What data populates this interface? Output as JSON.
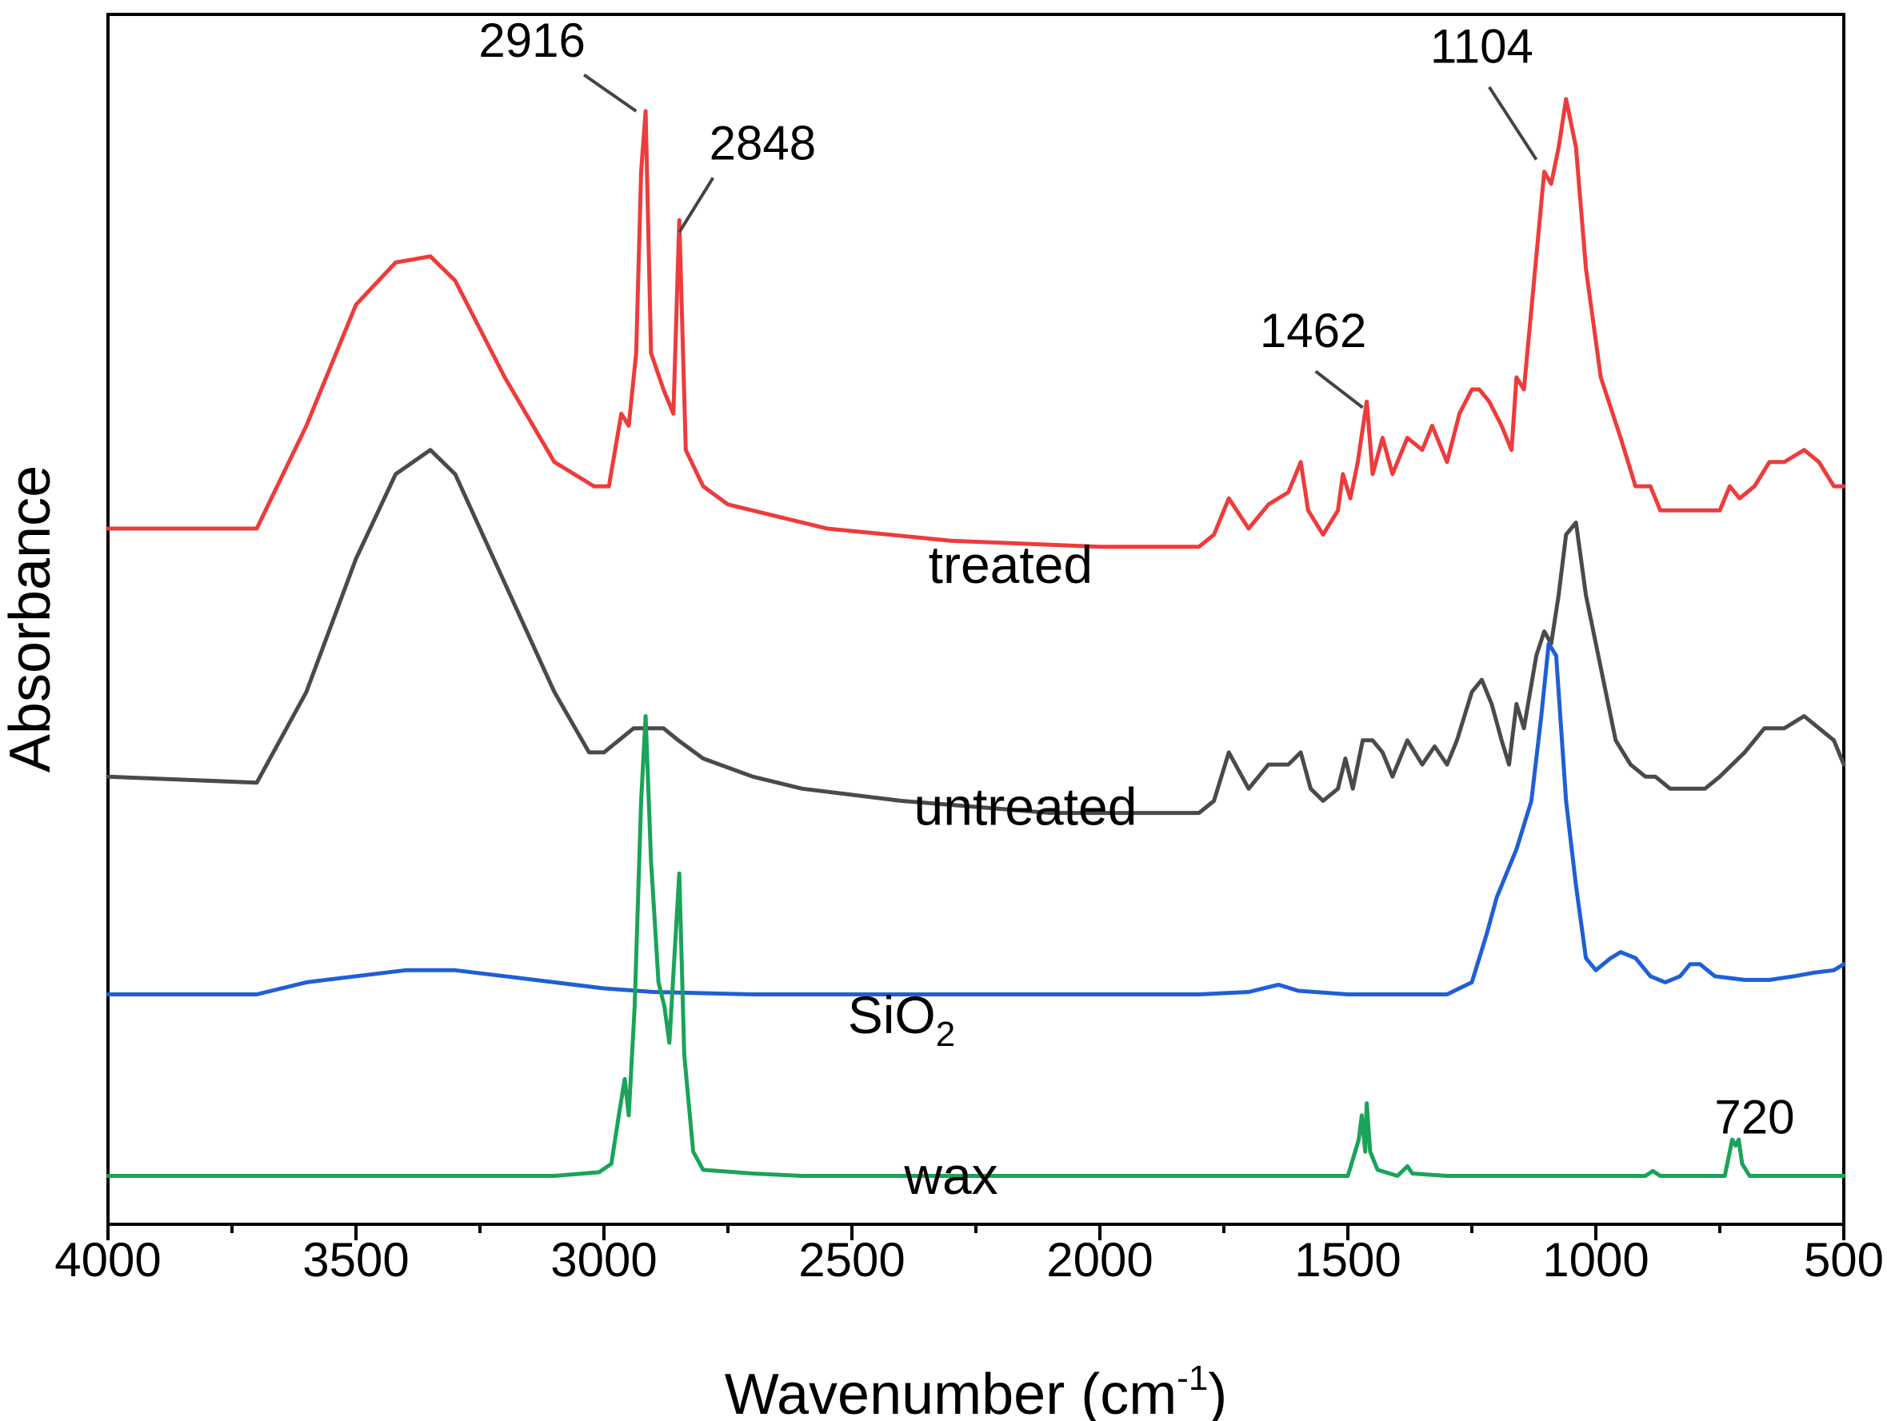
{
  "chart_data": {
    "type": "line",
    "title": "",
    "xlabel": "Wavenumber",
    "xlabel_unit_prefix": "(cm",
    "xlabel_unit_exponent": "-1",
    "xlabel_unit_suffix": ")",
    "ylabel": "Absorbance",
    "xlim": [
      4000,
      500
    ],
    "ylim": [
      0,
      100
    ],
    "x_reversed": true,
    "y_ticks_shown": false,
    "grid": false,
    "legend": "none",
    "x_ticks": [
      4000,
      3500,
      3000,
      2500,
      2000,
      1500,
      1000,
      500
    ],
    "x_tick_labels": [
      "4000",
      "3500",
      "3000",
      "2500",
      "2000",
      "1500",
      "1000",
      "500"
    ],
    "x_minor_step": 250,
    "series": [
      {
        "name": "treated",
        "color": "#ee3b3b",
        "points": [
          [
            4000,
            57.5
          ],
          [
            3700,
            57.5
          ],
          [
            3600,
            66
          ],
          [
            3500,
            76
          ],
          [
            3420,
            79.5
          ],
          [
            3350,
            80
          ],
          [
            3300,
            78
          ],
          [
            3200,
            70
          ],
          [
            3100,
            63
          ],
          [
            3020,
            61
          ],
          [
            2990,
            61
          ],
          [
            2965,
            67
          ],
          [
            2950,
            66
          ],
          [
            2935,
            72
          ],
          [
            2925,
            87
          ],
          [
            2916,
            92
          ],
          [
            2905,
            72
          ],
          [
            2880,
            69
          ],
          [
            2860,
            67
          ],
          [
            2848,
            83
          ],
          [
            2835,
            64
          ],
          [
            2800,
            61
          ],
          [
            2750,
            59.5
          ],
          [
            2650,
            58.5
          ],
          [
            2550,
            57.5
          ],
          [
            2300,
            56.5
          ],
          [
            2000,
            56
          ],
          [
            1800,
            56
          ],
          [
            1770,
            57
          ],
          [
            1740,
            60
          ],
          [
            1700,
            57.5
          ],
          [
            1660,
            59.5
          ],
          [
            1620,
            60.5
          ],
          [
            1595,
            63
          ],
          [
            1580,
            59
          ],
          [
            1550,
            57
          ],
          [
            1520,
            59
          ],
          [
            1510,
            62
          ],
          [
            1495,
            60
          ],
          [
            1480,
            63
          ],
          [
            1462,
            68
          ],
          [
            1450,
            62
          ],
          [
            1430,
            65
          ],
          [
            1410,
            62
          ],
          [
            1380,
            65
          ],
          [
            1350,
            64
          ],
          [
            1330,
            66
          ],
          [
            1300,
            63
          ],
          [
            1275,
            67
          ],
          [
            1250,
            69
          ],
          [
            1235,
            69
          ],
          [
            1215,
            68
          ],
          [
            1190,
            66
          ],
          [
            1170,
            64
          ],
          [
            1160,
            70
          ],
          [
            1145,
            69
          ],
          [
            1120,
            80
          ],
          [
            1104,
            87
          ],
          [
            1090,
            86
          ],
          [
            1075,
            89
          ],
          [
            1060,
            93
          ],
          [
            1040,
            89
          ],
          [
            1020,
            79
          ],
          [
            990,
            70
          ],
          [
            950,
            65
          ],
          [
            920,
            61
          ],
          [
            890,
            61
          ],
          [
            870,
            59
          ],
          [
            820,
            59
          ],
          [
            780,
            59
          ],
          [
            750,
            59
          ],
          [
            730,
            61
          ],
          [
            710,
            60
          ],
          [
            680,
            61
          ],
          [
            650,
            63
          ],
          [
            620,
            63
          ],
          [
            580,
            64
          ],
          [
            550,
            63
          ],
          [
            520,
            61
          ],
          [
            500,
            61
          ]
        ]
      },
      {
        "name": "untreated",
        "color": "#4a4a4a",
        "points": [
          [
            4000,
            37
          ],
          [
            3700,
            36.5
          ],
          [
            3600,
            44
          ],
          [
            3500,
            55
          ],
          [
            3420,
            62
          ],
          [
            3350,
            64
          ],
          [
            3300,
            62
          ],
          [
            3200,
            53
          ],
          [
            3100,
            44
          ],
          [
            3030,
            39
          ],
          [
            3000,
            39
          ],
          [
            2970,
            40
          ],
          [
            2940,
            41
          ],
          [
            2900,
            41
          ],
          [
            2880,
            41
          ],
          [
            2850,
            40
          ],
          [
            2800,
            38.5
          ],
          [
            2700,
            37
          ],
          [
            2600,
            36
          ],
          [
            2400,
            35
          ],
          [
            2100,
            34
          ],
          [
            1800,
            34
          ],
          [
            1770,
            35
          ],
          [
            1740,
            39
          ],
          [
            1700,
            36
          ],
          [
            1660,
            38
          ],
          [
            1620,
            38
          ],
          [
            1595,
            39
          ],
          [
            1575,
            36
          ],
          [
            1550,
            35
          ],
          [
            1520,
            36
          ],
          [
            1505,
            38.5
          ],
          [
            1490,
            36
          ],
          [
            1470,
            40
          ],
          [
            1450,
            40
          ],
          [
            1430,
            39
          ],
          [
            1410,
            37
          ],
          [
            1380,
            40
          ],
          [
            1350,
            38
          ],
          [
            1325,
            39.5
          ],
          [
            1300,
            38
          ],
          [
            1280,
            40
          ],
          [
            1250,
            44
          ],
          [
            1230,
            45
          ],
          [
            1210,
            43
          ],
          [
            1190,
            40
          ],
          [
            1175,
            38
          ],
          [
            1160,
            43
          ],
          [
            1145,
            41
          ],
          [
            1120,
            47
          ],
          [
            1104,
            49
          ],
          [
            1090,
            48
          ],
          [
            1075,
            52
          ],
          [
            1060,
            57
          ],
          [
            1040,
            58
          ],
          [
            1020,
            52
          ],
          [
            1000,
            48
          ],
          [
            985,
            45
          ],
          [
            960,
            40
          ],
          [
            930,
            38
          ],
          [
            900,
            37
          ],
          [
            880,
            37
          ],
          [
            850,
            36
          ],
          [
            780,
            36
          ],
          [
            750,
            37
          ],
          [
            700,
            39
          ],
          [
            660,
            41
          ],
          [
            620,
            41
          ],
          [
            580,
            42
          ],
          [
            550,
            41
          ],
          [
            520,
            40
          ],
          [
            500,
            38
          ]
        ]
      },
      {
        "name": "SiO₂",
        "label_main": "SiO",
        "label_sub": "2",
        "color": "#1f5fd6",
        "points": [
          [
            4000,
            19
          ],
          [
            3700,
            19
          ],
          [
            3600,
            20
          ],
          [
            3500,
            20.5
          ],
          [
            3400,
            21
          ],
          [
            3300,
            21
          ],
          [
            3200,
            20.5
          ],
          [
            3100,
            20
          ],
          [
            3000,
            19.5
          ],
          [
            2900,
            19.2
          ],
          [
            2700,
            19
          ],
          [
            2400,
            19
          ],
          [
            2100,
            19
          ],
          [
            1800,
            19
          ],
          [
            1700,
            19.2
          ],
          [
            1640,
            19.8
          ],
          [
            1600,
            19.3
          ],
          [
            1500,
            19
          ],
          [
            1400,
            19
          ],
          [
            1300,
            19
          ],
          [
            1250,
            20
          ],
          [
            1220,
            24
          ],
          [
            1200,
            27
          ],
          [
            1180,
            29
          ],
          [
            1160,
            31
          ],
          [
            1130,
            35
          ],
          [
            1110,
            42
          ],
          [
            1095,
            48
          ],
          [
            1080,
            47
          ],
          [
            1060,
            35
          ],
          [
            1040,
            28
          ],
          [
            1020,
            22
          ],
          [
            1000,
            21
          ],
          [
            970,
            22
          ],
          [
            950,
            22.5
          ],
          [
            920,
            22
          ],
          [
            890,
            20.5
          ],
          [
            860,
            20
          ],
          [
            830,
            20.5
          ],
          [
            810,
            21.5
          ],
          [
            790,
            21.5
          ],
          [
            760,
            20.5
          ],
          [
            700,
            20.2
          ],
          [
            650,
            20.2
          ],
          [
            600,
            20.5
          ],
          [
            560,
            20.8
          ],
          [
            520,
            21
          ],
          [
            500,
            21.5
          ]
        ]
      },
      {
        "name": "wax",
        "color": "#1aa35a",
        "points": [
          [
            4000,
            4
          ],
          [
            3500,
            4
          ],
          [
            3100,
            4
          ],
          [
            3010,
            4.3
          ],
          [
            2985,
            5
          ],
          [
            2970,
            9
          ],
          [
            2958,
            12
          ],
          [
            2950,
            9
          ],
          [
            2938,
            18
          ],
          [
            2925,
            35
          ],
          [
            2916,
            42
          ],
          [
            2905,
            30
          ],
          [
            2890,
            20
          ],
          [
            2878,
            18
          ],
          [
            2868,
            15
          ],
          [
            2858,
            22
          ],
          [
            2848,
            29
          ],
          [
            2838,
            14
          ],
          [
            2820,
            6
          ],
          [
            2800,
            4.5
          ],
          [
            2700,
            4.2
          ],
          [
            2600,
            4
          ],
          [
            2500,
            4
          ],
          [
            2000,
            4
          ],
          [
            1500,
            4
          ],
          [
            1478,
            7
          ],
          [
            1472,
            9
          ],
          [
            1465,
            6
          ],
          [
            1462,
            10
          ],
          [
            1455,
            6
          ],
          [
            1440,
            4.5
          ],
          [
            1400,
            4
          ],
          [
            1380,
            4.8
          ],
          [
            1370,
            4.2
          ],
          [
            1300,
            4
          ],
          [
            900,
            4
          ],
          [
            885,
            4.4
          ],
          [
            870,
            4
          ],
          [
            740,
            4
          ],
          [
            730,
            6
          ],
          [
            725,
            7
          ],
          [
            718,
            6.5
          ],
          [
            712,
            7
          ],
          [
            705,
            5
          ],
          [
            690,
            4
          ],
          [
            600,
            4
          ],
          [
            500,
            4
          ]
        ]
      }
    ],
    "series_labels": [
      {
        "name": "treated",
        "text": "treated",
        "at": [
          2180,
          53
        ]
      },
      {
        "name": "untreated",
        "text": "untreated",
        "at": [
          2150,
          33
        ]
      },
      {
        "name": "SiO₂",
        "text_main": "SiO",
        "text_sub": "2",
        "at": [
          2400,
          15.8
        ]
      },
      {
        "name": "wax",
        "text": "wax",
        "at": [
          2300,
          2.5
        ]
      }
    ],
    "annotations": [
      {
        "text": "2916",
        "label_at": [
          3145,
          96.5
        ],
        "line_from": [
          3040,
          95
        ],
        "line_to": [
          2935,
          92
        ]
      },
      {
        "text": "2848",
        "label_at": [
          2680,
          88
        ],
        "line_from": [
          2780,
          86.5
        ],
        "line_to": [
          2848,
          82
        ]
      },
      {
        "text": "1462",
        "label_at": [
          1570,
          72.5
        ],
        "line_from": [
          1565,
          70.5
        ],
        "line_to": [
          1470,
          67.5
        ]
      },
      {
        "text": "1104",
        "label_at": [
          1230,
          96
        ],
        "line_from": [
          1215,
          94
        ],
        "line_to": [
          1120,
          88
        ]
      },
      {
        "text": "720",
        "label_at": [
          680,
          7.5
        ],
        "line_from": null,
        "line_to": null
      }
    ]
  }
}
